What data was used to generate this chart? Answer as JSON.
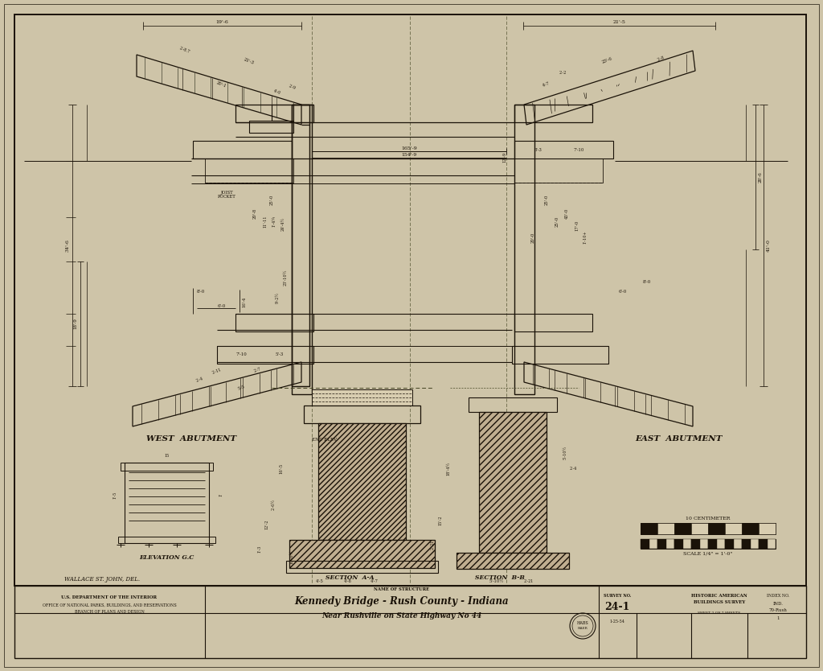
{
  "bg_color": "#d8cdb0",
  "paper_color": "#cec4a8",
  "line_color": "#1a1208",
  "title_line1": "Kennedy Bridge - Rush County - Indiana",
  "title_line2": "Near Rushville on State Highway No 44",
  "name_of_structure_label": "NAME OF STRUCTURE",
  "survey_no": "24-1",
  "survey_date": "1-25-54",
  "sheet": "SHEET 2 OF 7 SHEETS",
  "dept_line1": "U.S. DEPARTMENT OF THE INTERIOR",
  "dept_line2": "OFFICE OF NATIONAL PARKS, BUILDINGS, AND RESERVATIONS",
  "dept_line3": "BRANCH OF PLANS AND DESIGN",
  "drafter": "WALLACE ST. JOHN, DEL.",
  "west_abutment_label": "WEST  ABUTMENT",
  "east_abutment_label": "EAST  ABUTMENT",
  "elevation_gc_label": "ELEVATION G.C",
  "section_aa_label": "SECTION  A-A",
  "section_bb_label": "SECTION  B-B",
  "scale_label": "SCALE 1/4\" = 1'-0\"",
  "centimeter_label": "10 CENTIMETER",
  "end_elev_label": "END ELEV.",
  "joist_label": "JOIST\nPOCKET"
}
